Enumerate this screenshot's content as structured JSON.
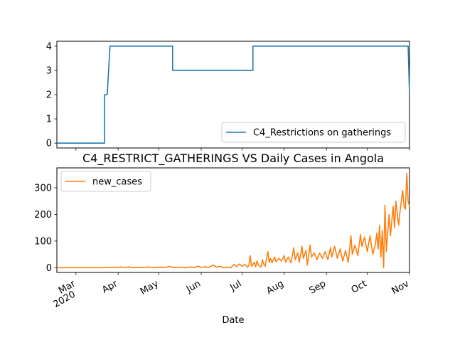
{
  "chart_data": [
    {
      "type": "line",
      "title": "",
      "xlabel": "",
      "ylabel": "",
      "x_range": [
        "2020-02-16",
        "2020-11-01"
      ],
      "ylim": [
        -0.2,
        4.2
      ],
      "y_ticks": [
        0,
        1,
        2,
        3,
        4
      ],
      "grid": false,
      "legend_position": "lower-right",
      "series": [
        {
          "name": "C4_Restrictions on gatherings",
          "color": "#1f77b4",
          "step_points": [
            [
              "2020-02-16",
              0
            ],
            [
              "2020-03-22",
              0
            ],
            [
              "2020-03-22",
              2
            ],
            [
              "2020-03-24",
              2
            ],
            [
              "2020-03-26",
              4
            ],
            [
              "2020-05-11",
              4
            ],
            [
              "2020-05-11",
              3
            ],
            [
              "2020-07-09",
              3
            ],
            [
              "2020-07-09",
              4
            ],
            [
              "2020-10-31",
              4
            ],
            [
              "2020-11-01",
              2
            ]
          ]
        }
      ]
    },
    {
      "type": "line",
      "title": "C4_RESTRICT_GATHERINGS VS Daily Cases in Angola",
      "xlabel": "Date",
      "ylabel": "",
      "x_range": [
        "2020-02-16",
        "2020-11-01"
      ],
      "ylim": [
        -18,
        375
      ],
      "y_ticks": [
        0,
        100,
        200,
        300
      ],
      "x_ticks": [
        {
          "date": "2020-03-01",
          "label": "Mar",
          "year": "2020"
        },
        {
          "date": "2020-04-01",
          "label": "Apr"
        },
        {
          "date": "2020-05-01",
          "label": "May"
        },
        {
          "date": "2020-06-01",
          "label": "Jun"
        },
        {
          "date": "2020-07-01",
          "label": "Jul"
        },
        {
          "date": "2020-08-01",
          "label": "Aug"
        },
        {
          "date": "2020-09-01",
          "label": "Sep"
        },
        {
          "date": "2020-10-01",
          "label": "Oct"
        },
        {
          "date": "2020-11-01",
          "label": "Nov"
        }
      ],
      "grid": false,
      "legend_position": "top-left",
      "series": [
        {
          "name": "new_cases",
          "color": "#ff7f0e",
          "points": [
            [
              "2020-02-16",
              0
            ],
            [
              "2020-03-20",
              0
            ],
            [
              "2020-03-21",
              1
            ],
            [
              "2020-03-23",
              0
            ],
            [
              "2020-03-25",
              2
            ],
            [
              "2020-03-27",
              0
            ],
            [
              "2020-03-29",
              2
            ],
            [
              "2020-04-01",
              0
            ],
            [
              "2020-04-03",
              3
            ],
            [
              "2020-04-05",
              0
            ],
            [
              "2020-04-09",
              3
            ],
            [
              "2020-04-11",
              0
            ],
            [
              "2020-04-16",
              1
            ],
            [
              "2020-04-19",
              0
            ],
            [
              "2020-04-23",
              3
            ],
            [
              "2020-04-26",
              0
            ],
            [
              "2020-05-02",
              2
            ],
            [
              "2020-05-05",
              0
            ],
            [
              "2020-05-09",
              5
            ],
            [
              "2020-05-11",
              0
            ],
            [
              "2020-05-17",
              2
            ],
            [
              "2020-05-20",
              0
            ],
            [
              "2020-05-25",
              3
            ],
            [
              "2020-05-27",
              0
            ],
            [
              "2020-05-30",
              6
            ],
            [
              "2020-06-01",
              0
            ],
            [
              "2020-06-04",
              4
            ],
            [
              "2020-06-06",
              0
            ],
            [
              "2020-06-10",
              10
            ],
            [
              "2020-06-12",
              2
            ],
            [
              "2020-06-15",
              5
            ],
            [
              "2020-06-17",
              0
            ],
            [
              "2020-06-20",
              2
            ],
            [
              "2020-06-23",
              0
            ],
            [
              "2020-06-25",
              12
            ],
            [
              "2020-06-27",
              4
            ],
            [
              "2020-06-29",
              14
            ],
            [
              "2020-07-01",
              5
            ],
            [
              "2020-07-03",
              12
            ],
            [
              "2020-07-05",
              2
            ],
            [
              "2020-07-06",
              8
            ],
            [
              "2020-07-07",
              45
            ],
            [
              "2020-07-08",
              5
            ],
            [
              "2020-07-10",
              20
            ],
            [
              "2020-07-11",
              3
            ],
            [
              "2020-07-12",
              25
            ],
            [
              "2020-07-13",
              10
            ],
            [
              "2020-07-15",
              2
            ],
            [
              "2020-07-16",
              30
            ],
            [
              "2020-07-17",
              12
            ],
            [
              "2020-07-18",
              5
            ],
            [
              "2020-07-20",
              60
            ],
            [
              "2020-07-21",
              20
            ],
            [
              "2020-07-22",
              35
            ],
            [
              "2020-07-23",
              18
            ],
            [
              "2020-07-25",
              40
            ],
            [
              "2020-07-26",
              22
            ],
            [
              "2020-07-28",
              35
            ],
            [
              "2020-07-30",
              25
            ],
            [
              "2020-08-01",
              45
            ],
            [
              "2020-08-02",
              20
            ],
            [
              "2020-08-04",
              40
            ],
            [
              "2020-08-06",
              18
            ],
            [
              "2020-08-08",
              75
            ],
            [
              "2020-08-09",
              30
            ],
            [
              "2020-08-11",
              55
            ],
            [
              "2020-08-12",
              20
            ],
            [
              "2020-08-14",
              80
            ],
            [
              "2020-08-15",
              35
            ],
            [
              "2020-08-17",
              65
            ],
            [
              "2020-08-18",
              10
            ],
            [
              "2020-08-20",
              85
            ],
            [
              "2020-08-21",
              40
            ],
            [
              "2020-08-23",
              55
            ],
            [
              "2020-08-25",
              30
            ],
            [
              "2020-08-27",
              55
            ],
            [
              "2020-08-29",
              35
            ],
            [
              "2020-08-31",
              60
            ],
            [
              "2020-09-02",
              30
            ],
            [
              "2020-09-04",
              75
            ],
            [
              "2020-09-05",
              40
            ],
            [
              "2020-09-07",
              80
            ],
            [
              "2020-09-09",
              35
            ],
            [
              "2020-09-11",
              70
            ],
            [
              "2020-09-13",
              25
            ],
            [
              "2020-09-15",
              65
            ],
            [
              "2020-09-17",
              20
            ],
            [
              "2020-09-19",
              120
            ],
            [
              "2020-09-20",
              50
            ],
            [
              "2020-09-22",
              85
            ],
            [
              "2020-09-24",
              45
            ],
            [
              "2020-09-26",
              125
            ],
            [
              "2020-09-27",
              80
            ],
            [
              "2020-09-29",
              115
            ],
            [
              "2020-10-01",
              60
            ],
            [
              "2020-10-03",
              120
            ],
            [
              "2020-10-05",
              50
            ],
            [
              "2020-10-07",
              90
            ],
            [
              "2020-10-08",
              130
            ],
            [
              "2020-10-09",
              70
            ],
            [
              "2020-10-10",
              160
            ],
            [
              "2020-10-11",
              40
            ],
            [
              "2020-10-12",
              140
            ],
            [
              "2020-10-13",
              0
            ],
            [
              "2020-10-14",
              235
            ],
            [
              "2020-10-15",
              60
            ],
            [
              "2020-10-17",
              200
            ],
            [
              "2020-10-18",
              120
            ],
            [
              "2020-10-20",
              230
            ],
            [
              "2020-10-21",
              150
            ],
            [
              "2020-10-22",
              250
            ],
            [
              "2020-10-24",
              160
            ],
            [
              "2020-10-25",
              210
            ],
            [
              "2020-10-27",
              290
            ],
            [
              "2020-10-28",
              230
            ],
            [
              "2020-10-29",
              220
            ],
            [
              "2020-10-30",
              355
            ],
            [
              "2020-10-31",
              250
            ],
            [
              "2020-11-01",
              230
            ]
          ]
        }
      ]
    }
  ]
}
